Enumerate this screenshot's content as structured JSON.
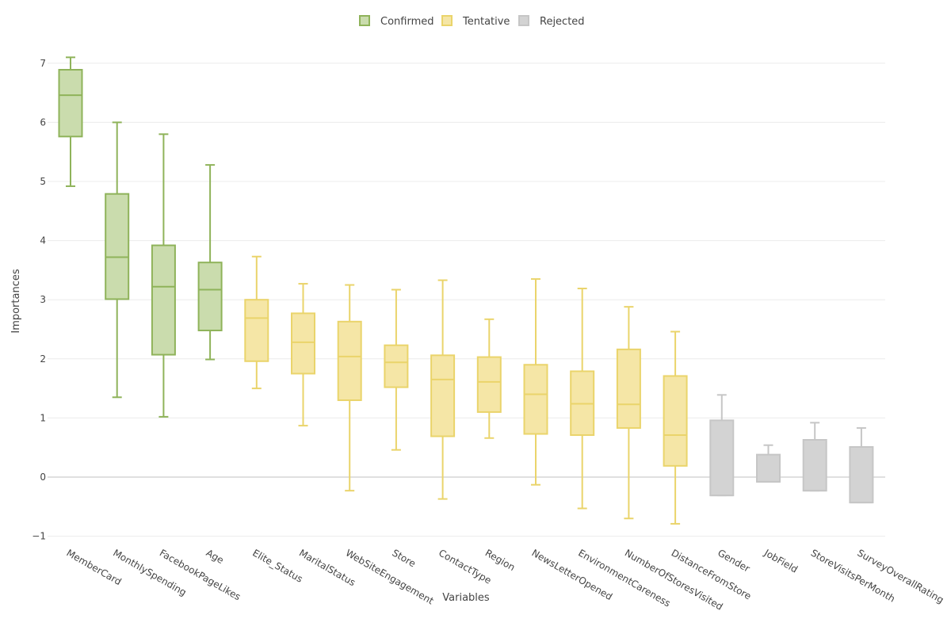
{
  "chart_data": {
    "type": "box",
    "title": "",
    "xlabel": "Variables",
    "ylabel": "Importances",
    "ylim": [
      -1,
      7
    ],
    "y_ticks": [
      "7",
      "6",
      "5",
      "4",
      "3",
      "2",
      "1",
      "0",
      "−1"
    ],
    "y_tick_values": [
      7,
      6,
      5,
      4,
      3,
      2,
      1,
      0,
      -1
    ],
    "grid": true,
    "legend_position": "top-center",
    "legend": [
      {
        "label": "Confirmed",
        "fill": "#cadcad",
        "stroke": "#8fb35a"
      },
      {
        "label": "Tentative",
        "fill": "#f5e6a6",
        "stroke": "#ead46b"
      },
      {
        "label": "Rejected",
        "fill": "#d3d3d3",
        "stroke": "#c6c6c6"
      }
    ],
    "categories": [
      "MemberCard",
      "MonthlySpending",
      "FacebookPageLikes",
      "Age",
      "Elite_Status",
      "MaritalStatus",
      "WebSiteEngagement",
      "Store",
      "ContactType",
      "Region",
      "NewsLetterOpened",
      "EnvironmentCareness",
      "NumberOfStoresVisited",
      "DistanceFromStore",
      "Gender",
      "JobField",
      "StoreVisitsPerMonth",
      "SurveyOverallRating"
    ],
    "boxes": [
      {
        "group": "Confirmed",
        "min": 4.92,
        "q1": 5.76,
        "median": 6.46,
        "q3": 6.89,
        "max": 7.1
      },
      {
        "group": "Confirmed",
        "min": 1.35,
        "q1": 3.01,
        "median": 3.72,
        "q3": 4.79,
        "max": 6.0
      },
      {
        "group": "Confirmed",
        "min": 1.02,
        "q1": 2.07,
        "median": 3.22,
        "q3": 3.92,
        "max": 5.8
      },
      {
        "group": "Confirmed",
        "min": 1.99,
        "q1": 2.48,
        "median": 3.17,
        "q3": 3.63,
        "max": 5.28
      },
      {
        "group": "Tentative",
        "min": 1.5,
        "q1": 1.96,
        "median": 2.69,
        "q3": 3.0,
        "max": 3.73
      },
      {
        "group": "Tentative",
        "min": 0.87,
        "q1": 1.75,
        "median": 2.28,
        "q3": 2.77,
        "max": 3.27
      },
      {
        "group": "Tentative",
        "min": -0.23,
        "q1": 1.3,
        "median": 2.04,
        "q3": 2.63,
        "max": 3.25
      },
      {
        "group": "Tentative",
        "min": 0.46,
        "q1": 1.52,
        "median": 1.94,
        "q3": 2.23,
        "max": 3.17
      },
      {
        "group": "Tentative",
        "min": -0.37,
        "q1": 0.69,
        "median": 1.65,
        "q3": 2.06,
        "max": 3.33
      },
      {
        "group": "Tentative",
        "min": 0.66,
        "q1": 1.1,
        "median": 1.61,
        "q3": 2.03,
        "max": 2.67
      },
      {
        "group": "Tentative",
        "min": -0.13,
        "q1": 0.73,
        "median": 1.4,
        "q3": 1.9,
        "max": 3.35
      },
      {
        "group": "Tentative",
        "min": -0.53,
        "q1": 0.71,
        "median": 1.24,
        "q3": 1.79,
        "max": 3.19
      },
      {
        "group": "Tentative",
        "min": -0.7,
        "q1": 0.83,
        "median": 1.23,
        "q3": 2.16,
        "max": 2.88
      },
      {
        "group": "Tentative",
        "min": -0.79,
        "q1": 0.19,
        "median": 0.71,
        "q3": 1.71,
        "max": 2.46
      },
      {
        "group": "Rejected",
        "min": -0.31,
        "q1": -0.31,
        "median": -0.31,
        "q3": 0.96,
        "max": 1.39
      },
      {
        "group": "Rejected",
        "min": -0.08,
        "q1": -0.08,
        "median": -0.08,
        "q3": 0.38,
        "max": 0.54
      },
      {
        "group": "Rejected",
        "min": -0.23,
        "q1": -0.23,
        "median": -0.23,
        "q3": 0.63,
        "max": 0.92
      },
      {
        "group": "Rejected",
        "min": -0.43,
        "q1": -0.43,
        "median": -0.43,
        "q3": 0.51,
        "max": 0.83
      }
    ]
  }
}
